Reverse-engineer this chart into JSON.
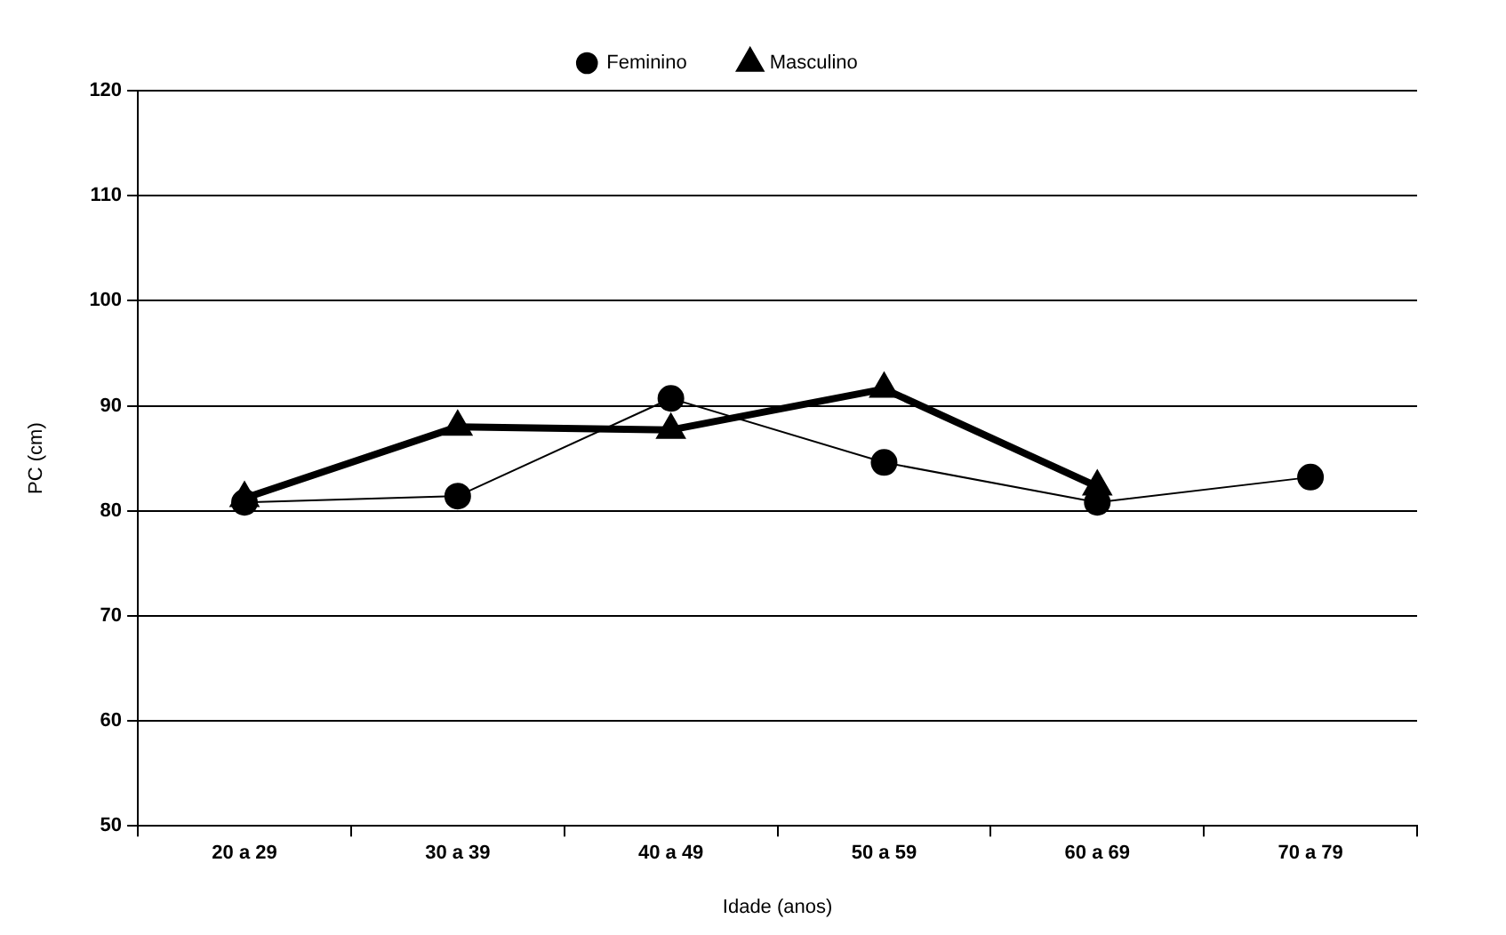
{
  "chart_data": {
    "type": "line",
    "xlabel": "Idade (anos)",
    "ylabel": "PC (cm)",
    "categories": [
      "20 a 29",
      "30 a 39",
      "40 a 49",
      "50 a 59",
      "60 a 69",
      "70 a 79"
    ],
    "series": [
      {
        "name": "Masculino",
        "color": "#000000",
        "marker": "triangle",
        "values": [
          81.2,
          88.0,
          87.7,
          91.6,
          82.3,
          null
        ]
      },
      {
        "name": "Feminino",
        "color": "#000000",
        "marker": "circle",
        "values": [
          80.8,
          81.4,
          90.7,
          84.6,
          80.8,
          83.2
        ]
      }
    ],
    "ylim": [
      50,
      120
    ],
    "yticks": [
      50,
      60,
      70,
      80,
      90,
      100,
      110,
      120
    ],
    "grid": "y",
    "legend": "top",
    "line_style": "solid"
  }
}
